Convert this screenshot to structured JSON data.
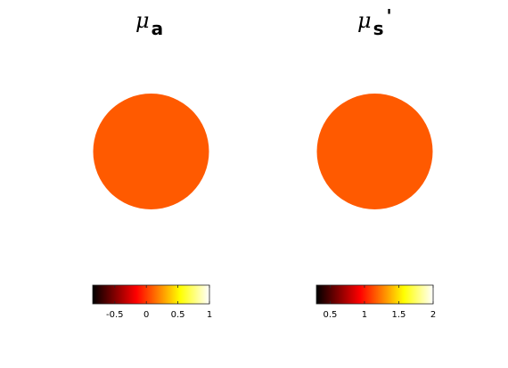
{
  "chart_data": [
    {
      "type": "heatmap",
      "title": "μa",
      "title_symbol": "μ",
      "title_subscript": "a",
      "title_suffix": "",
      "image_value": 0.18,
      "image_color": "#ff5a00",
      "shape": "circle",
      "colorbar": {
        "colormap": "hot",
        "range": [
          -0.85,
          1.0
        ],
        "ticks": [
          -0.5,
          0,
          0.5,
          1
        ],
        "tick_labels": [
          "-0.5",
          "0",
          "0.5",
          "1"
        ]
      }
    },
    {
      "type": "heatmap",
      "title": "μs'",
      "title_symbol": "μ",
      "title_subscript": "s",
      "title_suffix": "'",
      "image_value": 1.16,
      "image_color": "#ff5a00",
      "shape": "circle",
      "colorbar": {
        "colormap": "hot",
        "range": [
          0.3,
          2.0
        ],
        "ticks": [
          0.5,
          1,
          1.5,
          2
        ],
        "tick_labels": [
          "0.5",
          "1",
          "1.5",
          "2"
        ]
      }
    }
  ]
}
